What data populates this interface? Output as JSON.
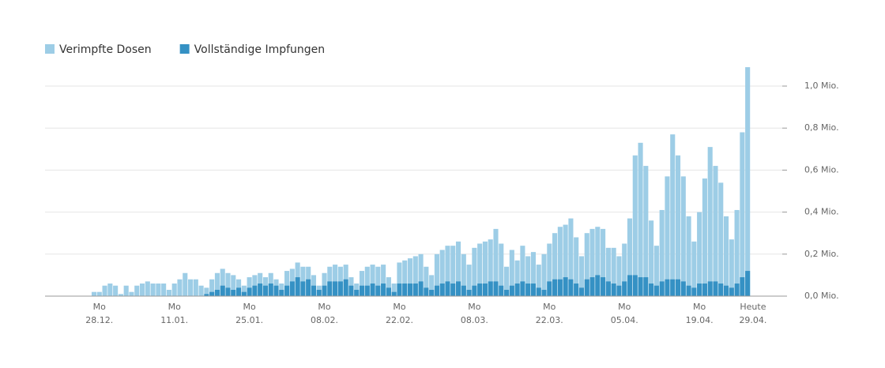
{
  "chart_data": {
    "type": "bar",
    "series": [
      {
        "name": "Verimpfte Dosen",
        "color": "#9dcde6",
        "values": [
          0.02,
          0.02,
          0.05,
          0.06,
          0.05,
          0.01,
          0.05,
          0.02,
          0.05,
          0.06,
          0.07,
          0.06,
          0.06,
          0.06,
          0.03,
          0.06,
          0.08,
          0.11,
          0.08,
          0.08,
          0.05,
          0.04,
          0.08,
          0.11,
          0.13,
          0.11,
          0.1,
          0.08,
          0.05,
          0.09,
          0.1,
          0.11,
          0.09,
          0.11,
          0.08,
          0.06,
          0.12,
          0.13,
          0.16,
          0.14,
          0.14,
          0.1,
          0.05,
          0.11,
          0.14,
          0.15,
          0.14,
          0.15,
          0.09,
          0.06,
          0.12,
          0.14,
          0.15,
          0.14,
          0.15,
          0.09,
          0.06,
          0.16,
          0.17,
          0.18,
          0.19,
          0.2,
          0.14,
          0.1,
          0.2,
          0.22,
          0.24,
          0.24,
          0.26,
          0.2,
          0.15,
          0.23,
          0.25,
          0.26,
          0.27,
          0.32,
          0.25,
          0.14,
          0.22,
          0.17,
          0.24,
          0.19,
          0.21,
          0.15,
          0.2,
          0.25,
          0.3,
          0.33,
          0.34,
          0.37,
          0.28,
          0.19,
          0.3,
          0.32,
          0.33,
          0.32,
          0.23,
          0.23,
          0.19,
          0.25,
          0.37,
          0.67,
          0.73,
          0.62,
          0.36,
          0.24,
          0.41,
          0.57,
          0.77,
          0.67,
          0.57,
          0.38,
          0.26,
          0.4,
          0.56,
          0.71,
          0.62,
          0.54,
          0.38,
          0.27,
          0.41,
          0.78,
          1.09,
          null
        ]
      },
      {
        "name": "Vollständige Impfungen",
        "color": "#3591c4",
        "values": [
          null,
          null,
          null,
          null,
          null,
          null,
          null,
          null,
          null,
          null,
          null,
          null,
          null,
          null,
          null,
          null,
          null,
          null,
          null,
          null,
          null,
          0.01,
          0.02,
          0.03,
          0.05,
          0.04,
          0.03,
          0.04,
          0.02,
          0.04,
          0.05,
          0.06,
          0.05,
          0.06,
          0.05,
          0.03,
          0.05,
          0.07,
          0.09,
          0.07,
          0.08,
          0.05,
          0.03,
          0.05,
          0.07,
          0.07,
          0.07,
          0.08,
          0.05,
          0.03,
          0.05,
          0.05,
          0.06,
          0.05,
          0.06,
          0.04,
          0.02,
          0.06,
          0.06,
          0.06,
          0.06,
          0.07,
          0.04,
          0.03,
          0.05,
          0.06,
          0.07,
          0.06,
          0.07,
          0.05,
          0.03,
          0.05,
          0.06,
          0.06,
          0.07,
          0.07,
          0.05,
          0.03,
          0.05,
          0.06,
          0.07,
          0.06,
          0.06,
          0.04,
          0.03,
          0.07,
          0.08,
          0.08,
          0.09,
          0.08,
          0.06,
          0.04,
          0.08,
          0.09,
          0.1,
          0.09,
          0.07,
          0.06,
          0.05,
          0.07,
          0.1,
          0.1,
          0.09,
          0.09,
          0.06,
          0.05,
          0.07,
          0.08,
          0.08,
          0.08,
          0.07,
          0.05,
          0.04,
          0.06,
          0.06,
          0.07,
          0.07,
          0.06,
          0.05,
          0.04,
          0.06,
          0.09,
          0.12,
          null
        ]
      }
    ],
    "categories": [
      null,
      [
        "Mo",
        "28.12."
      ],
      null,
      null,
      null,
      null,
      null,
      null,
      null,
      null,
      null,
      null,
      null,
      null,
      null,
      [
        "Mo",
        "11.01."
      ],
      null,
      null,
      null,
      null,
      null,
      null,
      null,
      null,
      null,
      null,
      null,
      null,
      null,
      [
        "Mo",
        "25.01."
      ],
      null,
      null,
      null,
      null,
      null,
      null,
      null,
      null,
      null,
      null,
      null,
      null,
      null,
      [
        "Mo",
        "08.02."
      ],
      null,
      null,
      null,
      null,
      null,
      null,
      null,
      null,
      null,
      null,
      null,
      null,
      null,
      [
        "Mo",
        "22.02."
      ],
      null,
      null,
      null,
      null,
      null,
      null,
      null,
      null,
      null,
      null,
      null,
      null,
      null,
      [
        "Mo",
        "08.03."
      ],
      null,
      null,
      null,
      null,
      null,
      null,
      null,
      null,
      null,
      null,
      null,
      null,
      null,
      [
        "Mo",
        "22.03."
      ],
      null,
      null,
      null,
      null,
      null,
      null,
      null,
      null,
      null,
      null,
      null,
      null,
      null,
      [
        "Mo",
        "05.04."
      ],
      null,
      null,
      null,
      null,
      null,
      null,
      null,
      null,
      null,
      null,
      null,
      null,
      null,
      [
        "Mo",
        "19.04."
      ],
      null,
      null,
      null,
      null,
      null,
      null,
      null,
      null,
      null,
      [
        "Heute",
        "29.04."
      ]
    ],
    "ylim": [
      0,
      1.1
    ],
    "yticks": [
      {
        "value": 0,
        "label": "0,0 Mio."
      },
      {
        "value": 0.2,
        "label": "0,2 Mio."
      },
      {
        "value": 0.4,
        "label": "0,4 Mio."
      },
      {
        "value": 0.6,
        "label": "0,6 Mio."
      },
      {
        "value": 0.8,
        "label": "0,8 Mio."
      },
      {
        "value": 1.0,
        "label": "1,0 Mio."
      }
    ],
    "grid": true,
    "legend": "top-left"
  }
}
